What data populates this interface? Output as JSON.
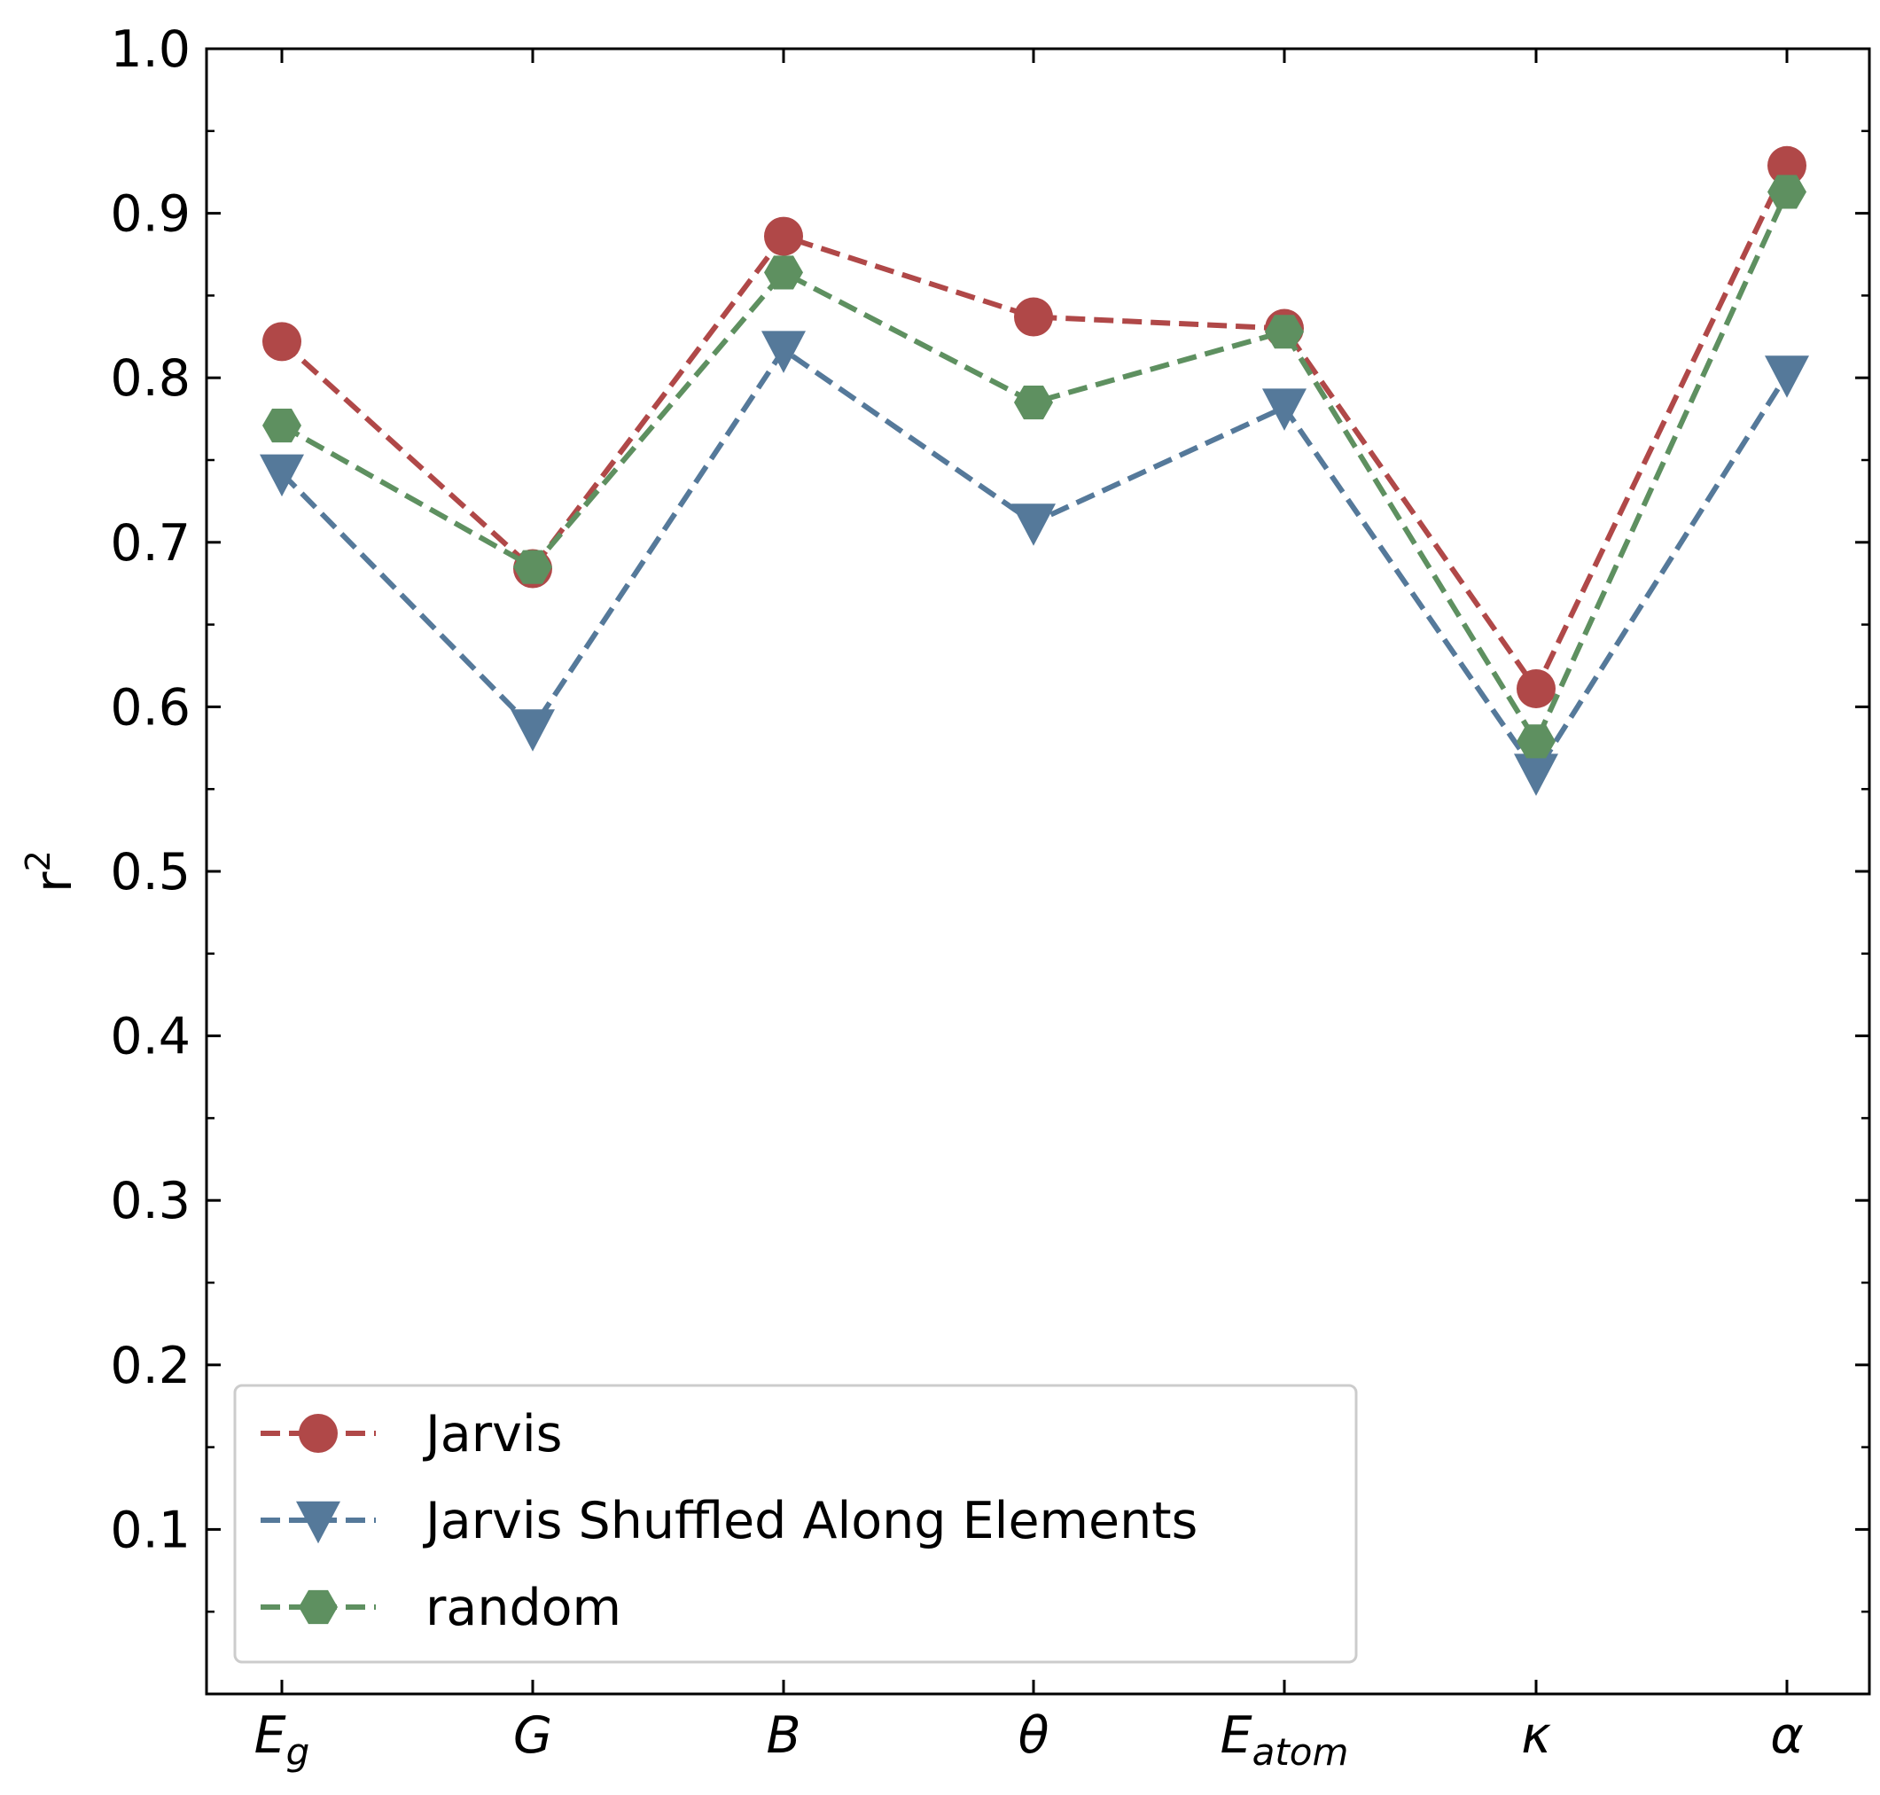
{
  "chart_data": {
    "type": "line",
    "ylabel": "r",
    "ylabel_superscript": "2",
    "ylim": [
      0.0,
      1.0
    ],
    "yticks": [
      0.1,
      0.2,
      0.3,
      0.4,
      0.5,
      0.6,
      0.7,
      0.8,
      0.9,
      1.0
    ],
    "ytick_labels": [
      "0.1",
      "0.2",
      "0.3",
      "0.4",
      "0.5",
      "0.6",
      "0.7",
      "0.8",
      "0.9",
      "1.0"
    ],
    "yminor_step": 0.05,
    "categories": [
      {
        "main": "E",
        "sub": "g"
      },
      {
        "main": "G",
        "sub": ""
      },
      {
        "main": "B",
        "sub": ""
      },
      {
        "main": "θ",
        "sub": ""
      },
      {
        "main": "E",
        "sub": "atom"
      },
      {
        "main": "κ",
        "sub": ""
      },
      {
        "main": "α",
        "sub": ""
      }
    ],
    "series": [
      {
        "name": "Jarvis",
        "color": "#b04848",
        "marker": "circle",
        "values": [
          0.822,
          0.684,
          0.886,
          0.837,
          0.83,
          0.611,
          0.929
        ]
      },
      {
        "name": "Jarvis Shuffled Along Elements",
        "color": "#55799a",
        "marker": "triangle-down",
        "values": [
          0.742,
          0.587,
          0.817,
          0.712,
          0.782,
          0.56,
          0.802
        ]
      },
      {
        "name": "random",
        "color": "#5e9060",
        "marker": "hexagon",
        "values": [
          0.771,
          0.685,
          0.864,
          0.785,
          0.828,
          0.579,
          0.913
        ]
      }
    ],
    "line_style": "dashed",
    "grid": false,
    "legend_position": "lower-left"
  }
}
